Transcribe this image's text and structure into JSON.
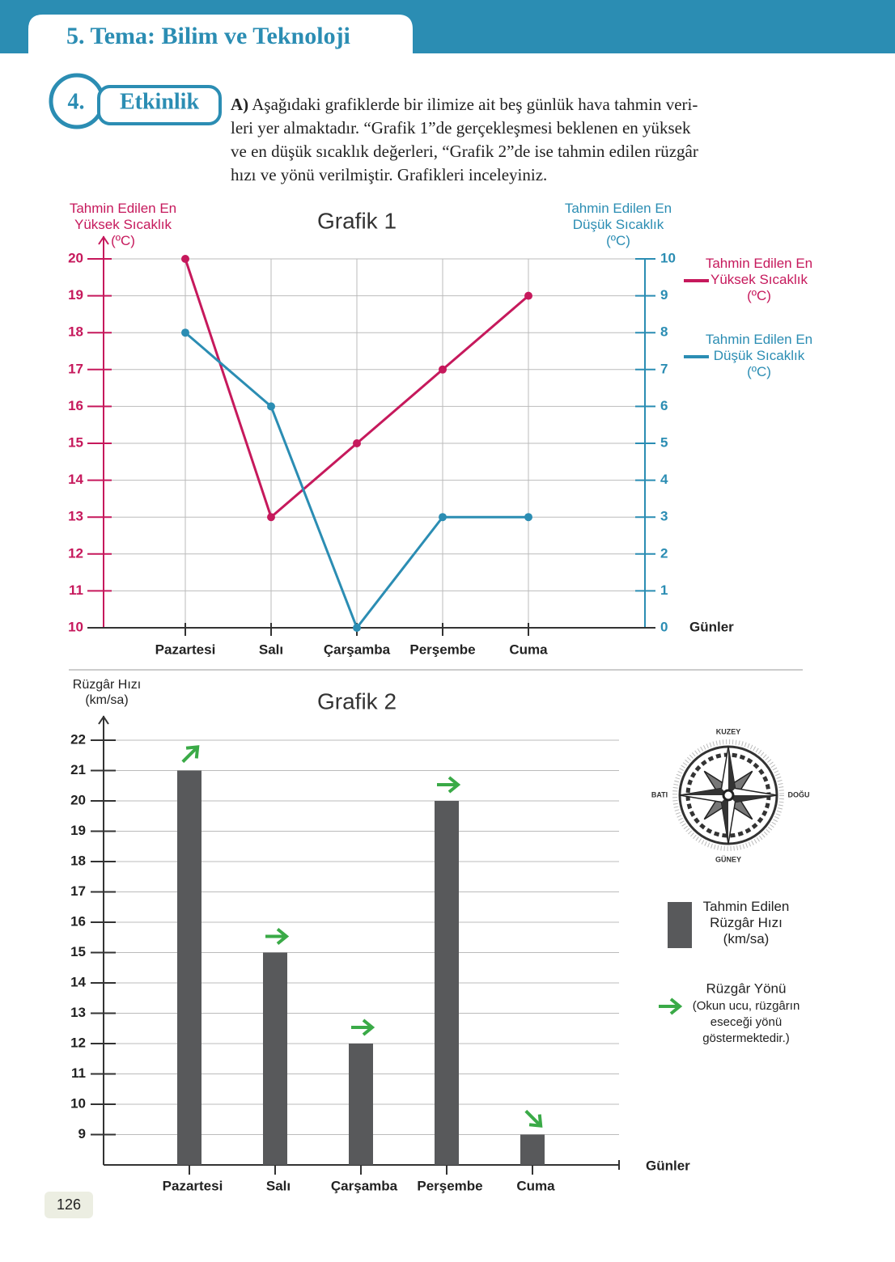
{
  "header": {
    "title": "5. Tema: Bilim ve Teknoloji"
  },
  "activity": {
    "number": "4.",
    "label": "Etkinlik",
    "part": "A)",
    "text": "Aşağıdaki grafiklerde bir ilimize ait beş günlük hava tahmin veri-\nleri yer almaktadır. “Grafik 1”de gerçekleşmesi beklenen en yüksek\nve en düşük sıcaklık değerleri, “Grafik 2”de ise tahmin edilen rüzgâr\nhızı ve yönü verilmiştir. Grafikleri inceleyiniz."
  },
  "chart_data": [
    {
      "type": "line",
      "title": "Grafik 1",
      "categories": [
        "Pazartesi",
        "Salı",
        "Çarşamba",
        "Perşembe",
        "Cuma"
      ],
      "x_label": "Günler",
      "y_label": "Tahmin Edilen En\nYüksek Sıcaklık\n(ºC)",
      "y2_label": "Tahmin Edilen En\nDüşük Sıcaklık\n(ºC)",
      "ylim": [
        10,
        20
      ],
      "yticks": [
        10,
        11,
        12,
        13,
        14,
        15,
        16,
        17,
        18,
        19,
        20
      ],
      "y2lim": [
        0,
        10
      ],
      "y2ticks": [
        0,
        1,
        2,
        3,
        4,
        5,
        6,
        7,
        8,
        9,
        10
      ],
      "grid": true,
      "series": [
        {
          "name": "Tahmin Edilen En\nYüksek Sıcaklık\n(ºC)",
          "color": "#c6195c",
          "values": [
            20,
            13,
            15,
            17,
            19
          ]
        },
        {
          "name": "Tahmin Edilen En\nDüşük Sıcaklık\n(ºC)",
          "color": "#2b8db3",
          "axis": "y2",
          "values": [
            8,
            6,
            0,
            3,
            3
          ]
        }
      ]
    },
    {
      "type": "bar",
      "title": "Grafik 2",
      "categories": [
        "Pazartesi",
        "Salı",
        "Çarşamba",
        "Perşembe",
        "Cuma"
      ],
      "x_label": "Günler",
      "y_label": "Rüzgâr Hızı\n(km/sa)",
      "ylim": [
        8,
        22
      ],
      "yticks": [
        9,
        10,
        11,
        12,
        13,
        14,
        15,
        16,
        17,
        18,
        19,
        20,
        21,
        22
      ],
      "grid": true,
      "series": [
        {
          "name": "Tahmin Edilen\nRüzgâr Hızı\n(km/sa)",
          "color": "#58595b",
          "values": [
            21,
            15,
            12,
            20,
            9
          ]
        }
      ],
      "arrow_angles": [
        45,
        0,
        0,
        0,
        -45
      ],
      "arrow_color": "#3aaa47",
      "arrow_legend": {
        "title": "Rüzgâr Yönü",
        "note": "(Okun ucu, rüzgârın\neseceği yönü\ngöstermektedir.)"
      },
      "compass": {
        "north": "KUZEY",
        "west": "BATI",
        "east": "DOĞU",
        "south": "GÜNEY"
      }
    }
  ],
  "page_number": "126"
}
